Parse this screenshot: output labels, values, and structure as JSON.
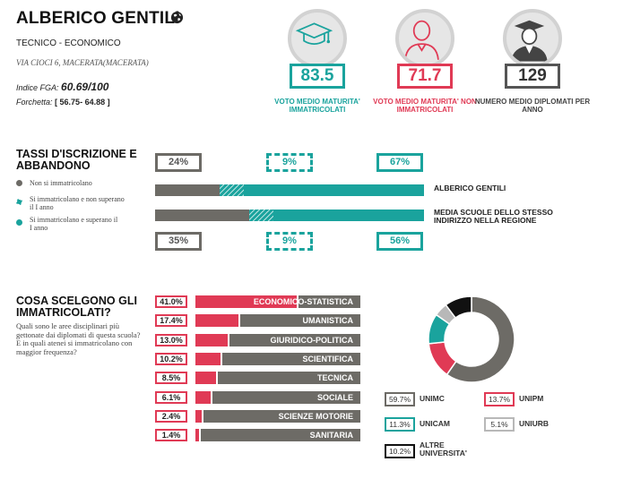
{
  "school": {
    "name": "ALBERICO GENTILI",
    "type": "TECNICO - ECONOMICO",
    "address": "VIA CIOCI 6, MACERATA(MACERATA)",
    "fga_label": "Indice FGA:",
    "fga_value": "60.69/100",
    "forchetta_label": "Forchetta:",
    "forchetta_value": "[ 56.75- 64.88 ]"
  },
  "stats": [
    {
      "value": "83.5",
      "label": "VOTO MEDIO MATURITA' IMMATRICOLATI",
      "color": "#1aa39d",
      "icon": "graduation-cap-icon"
    },
    {
      "value": "71.7",
      "label": "VOTO MEDIO MATURITA' NON IMMATRICOLATI",
      "color": "#e03a55",
      "icon": "person-icon"
    },
    {
      "value": "129",
      "label": "NUMERO MEDIO DIPLOMATI PER ANNO",
      "color": "#555555",
      "icon": "graduate-icon"
    }
  ],
  "iscrizione": {
    "title_line1": "TASSI D'ISCRIZIONE E",
    "title_line2": "ABBANDONO",
    "legend": [
      {
        "text": "Non si immatricolano",
        "color": "#6d6b66"
      },
      {
        "text": "Si immatricolano e non superano il I anno",
        "color": "#1aa39d"
      },
      {
        "text": "Si immatricolano e superano il I anno",
        "color": "#1aa39d"
      }
    ],
    "school_pcts": [
      "24%",
      "9%",
      "67%"
    ],
    "region_pcts": [
      "35%",
      "9%",
      "56%"
    ],
    "school_values": [
      24,
      9,
      67
    ],
    "region_values": [
      35,
      9,
      56
    ],
    "school_label": "ALBERICO GENTILI",
    "region_label": "MEDIA SCUOLE DELLO STESSO INDIRIZZO NELLA REGIONE"
  },
  "scelte": {
    "title_line1": "COSA SCELGONO GLI",
    "title_line2": "IMMATRICOLATI?",
    "desc": "Quali sono le aree disciplinari più gettonate dai diplomati di questa scuola? E in quali atenei si immatricolano con maggior frequenza?",
    "categories": [
      {
        "pct": "41.0%",
        "value": 41.0,
        "name": "ECONOMICO-STATISTICA"
      },
      {
        "pct": "17.4%",
        "value": 17.4,
        "name": "UMANISTICA"
      },
      {
        "pct": "13.0%",
        "value": 13.0,
        "name": "GIURIDICO-POLITICA"
      },
      {
        "pct": "10.2%",
        "value": 10.2,
        "name": "SCIENTIFICA"
      },
      {
        "pct": "8.5%",
        "value": 8.5,
        "name": "TECNICA"
      },
      {
        "pct": "6.1%",
        "value": 6.1,
        "name": "SOCIALE"
      },
      {
        "pct": "2.4%",
        "value": 2.4,
        "name": "SCIENZE MOTORIE"
      },
      {
        "pct": "1.4%",
        "value": 1.4,
        "name": "SANITARIA"
      }
    ],
    "universities": [
      {
        "pct": "59.7%",
        "value": 59.7,
        "name": "UNIMC",
        "color": "#6d6b66"
      },
      {
        "pct": "13.7%",
        "value": 13.7,
        "name": "UNIPM",
        "color": "#e03a55"
      },
      {
        "pct": "11.3%",
        "value": 11.3,
        "name": "UNICAM",
        "color": "#1aa39d"
      },
      {
        "pct": "5.1%",
        "value": 5.1,
        "name": "UNIURB",
        "color": "#b8b8b8"
      },
      {
        "pct": "10.2%",
        "value": 10.2,
        "name": "ALTRE UNIVERSITA'",
        "color": "#111111"
      }
    ]
  }
}
